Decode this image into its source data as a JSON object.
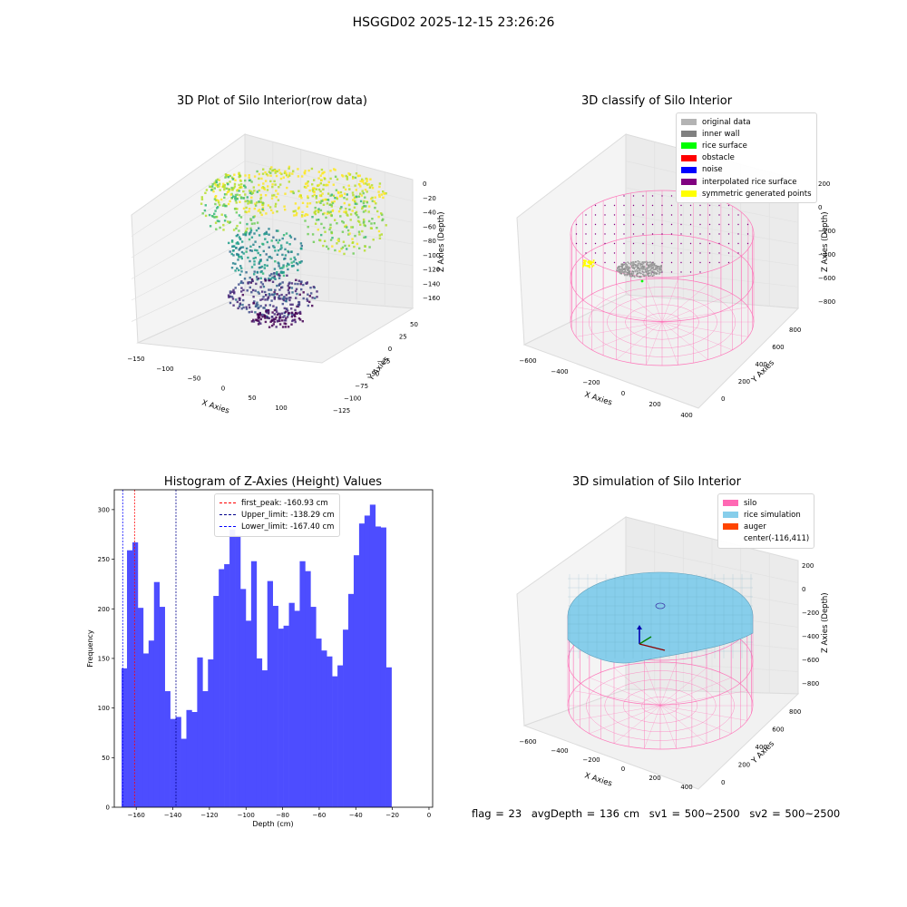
{
  "suptitle": "HSGGD02 2025-12-15 23:26:26",
  "panels": {
    "raw": {
      "title": "3D Plot of Silo Interior(row data)",
      "xlabel": "X Axies",
      "ylabel": "Y Axies",
      "zlabel": "Z Axies (Depth)",
      "xticks": [
        "−150",
        "−100",
        "−50",
        "0",
        "50",
        "100"
      ],
      "yticks": [
        "50",
        "25",
        "0",
        "−25",
        "−50",
        "−75",
        "−100",
        "−125"
      ],
      "zticks": [
        "0",
        "−20",
        "−40",
        "−60",
        "−80",
        "−100",
        "−120",
        "−140",
        "−160"
      ]
    },
    "classify": {
      "title": "3D classify of Silo Interior",
      "xlabel": "X Axies",
      "ylabel": "Y Axies",
      "zlabel": "Z Axies (Depth)",
      "xticks": [
        "−600",
        "−400",
        "−200",
        "0",
        "200",
        "400"
      ],
      "yticks": [
        "0",
        "200",
        "400",
        "600",
        "800"
      ],
      "zticks": [
        "200",
        "0",
        "−200",
        "−400",
        "−600",
        "−800"
      ],
      "legend": [
        {
          "label": "original data",
          "color": "#b3b3b3"
        },
        {
          "label": "inner wall",
          "color": "#808080"
        },
        {
          "label": "rice surface",
          "color": "#00ff00"
        },
        {
          "label": "obstacle",
          "color": "#ff0000"
        },
        {
          "label": "noise",
          "color": "#0000ff"
        },
        {
          "label": "interpolated rice surface",
          "color": "#800080"
        },
        {
          "label": "symmetric generated points",
          "color": "#ffff00"
        }
      ]
    },
    "simulation": {
      "title": "3D simulation of Silo Interior",
      "xlabel": "X Axies",
      "ylabel": "Y Axies",
      "zlabel": "Z Axies (Depth)",
      "xticks": [
        "−600",
        "−400",
        "−200",
        "0",
        "200",
        "400"
      ],
      "yticks": [
        "0",
        "200",
        "400",
        "600",
        "800"
      ],
      "zticks": [
        "200",
        "0",
        "−200",
        "−400",
        "−600",
        "−800"
      ],
      "legend": [
        {
          "label": "silo",
          "color": "#ff69b4"
        },
        {
          "label": "rice simulation",
          "color": "#87ceeb"
        },
        {
          "label": "auger",
          "color": "#ff4500"
        },
        {
          "label": "center(-116,411)",
          "color": ""
        }
      ]
    }
  },
  "chart_data": {
    "type": "bar",
    "title": "Histogram of Z-Axies (Height) Values",
    "xlabel": "Depth (cm)",
    "ylabel": "Frequency",
    "bar_color": "#4d4dff",
    "xlim": [
      -172,
      2
    ],
    "ylim": [
      0,
      320
    ],
    "xticks": [
      -160,
      -140,
      -120,
      -100,
      -80,
      -60,
      -40,
      -20,
      0
    ],
    "yticks": [
      0,
      50,
      100,
      150,
      200,
      250,
      300
    ],
    "bin_edges_start": -168.0,
    "bin_width": 2.95,
    "values": [
      140,
      259,
      267,
      201,
      155,
      168,
      227,
      202,
      117,
      89,
      91,
      69,
      98,
      96,
      151,
      117,
      149,
      213,
      240,
      245,
      280,
      274,
      220,
      188,
      248,
      150,
      138,
      228,
      203,
      180,
      183,
      206,
      198,
      248,
      238,
      202,
      170,
      158,
      152,
      132,
      143,
      179,
      215,
      254,
      286,
      294,
      305,
      283,
      282,
      141
    ],
    "vlines": [
      {
        "label": "first_peak: -160.93 cm",
        "x": -160.93,
        "color": "#ff0000"
      },
      {
        "label": "Upper_limit: -138.29 cm",
        "x": -138.29,
        "color": "#00008b"
      },
      {
        "label": "Lower_limit: -167.40 cm",
        "x": -167.4,
        "color": "#0000ff"
      }
    ]
  },
  "footer": {
    "flag": "flag = 23",
    "avg": "avgDepth = 136 cm",
    "sv1": "sv1 = 500~2500",
    "sv2": "sv2 = 500~2500"
  }
}
